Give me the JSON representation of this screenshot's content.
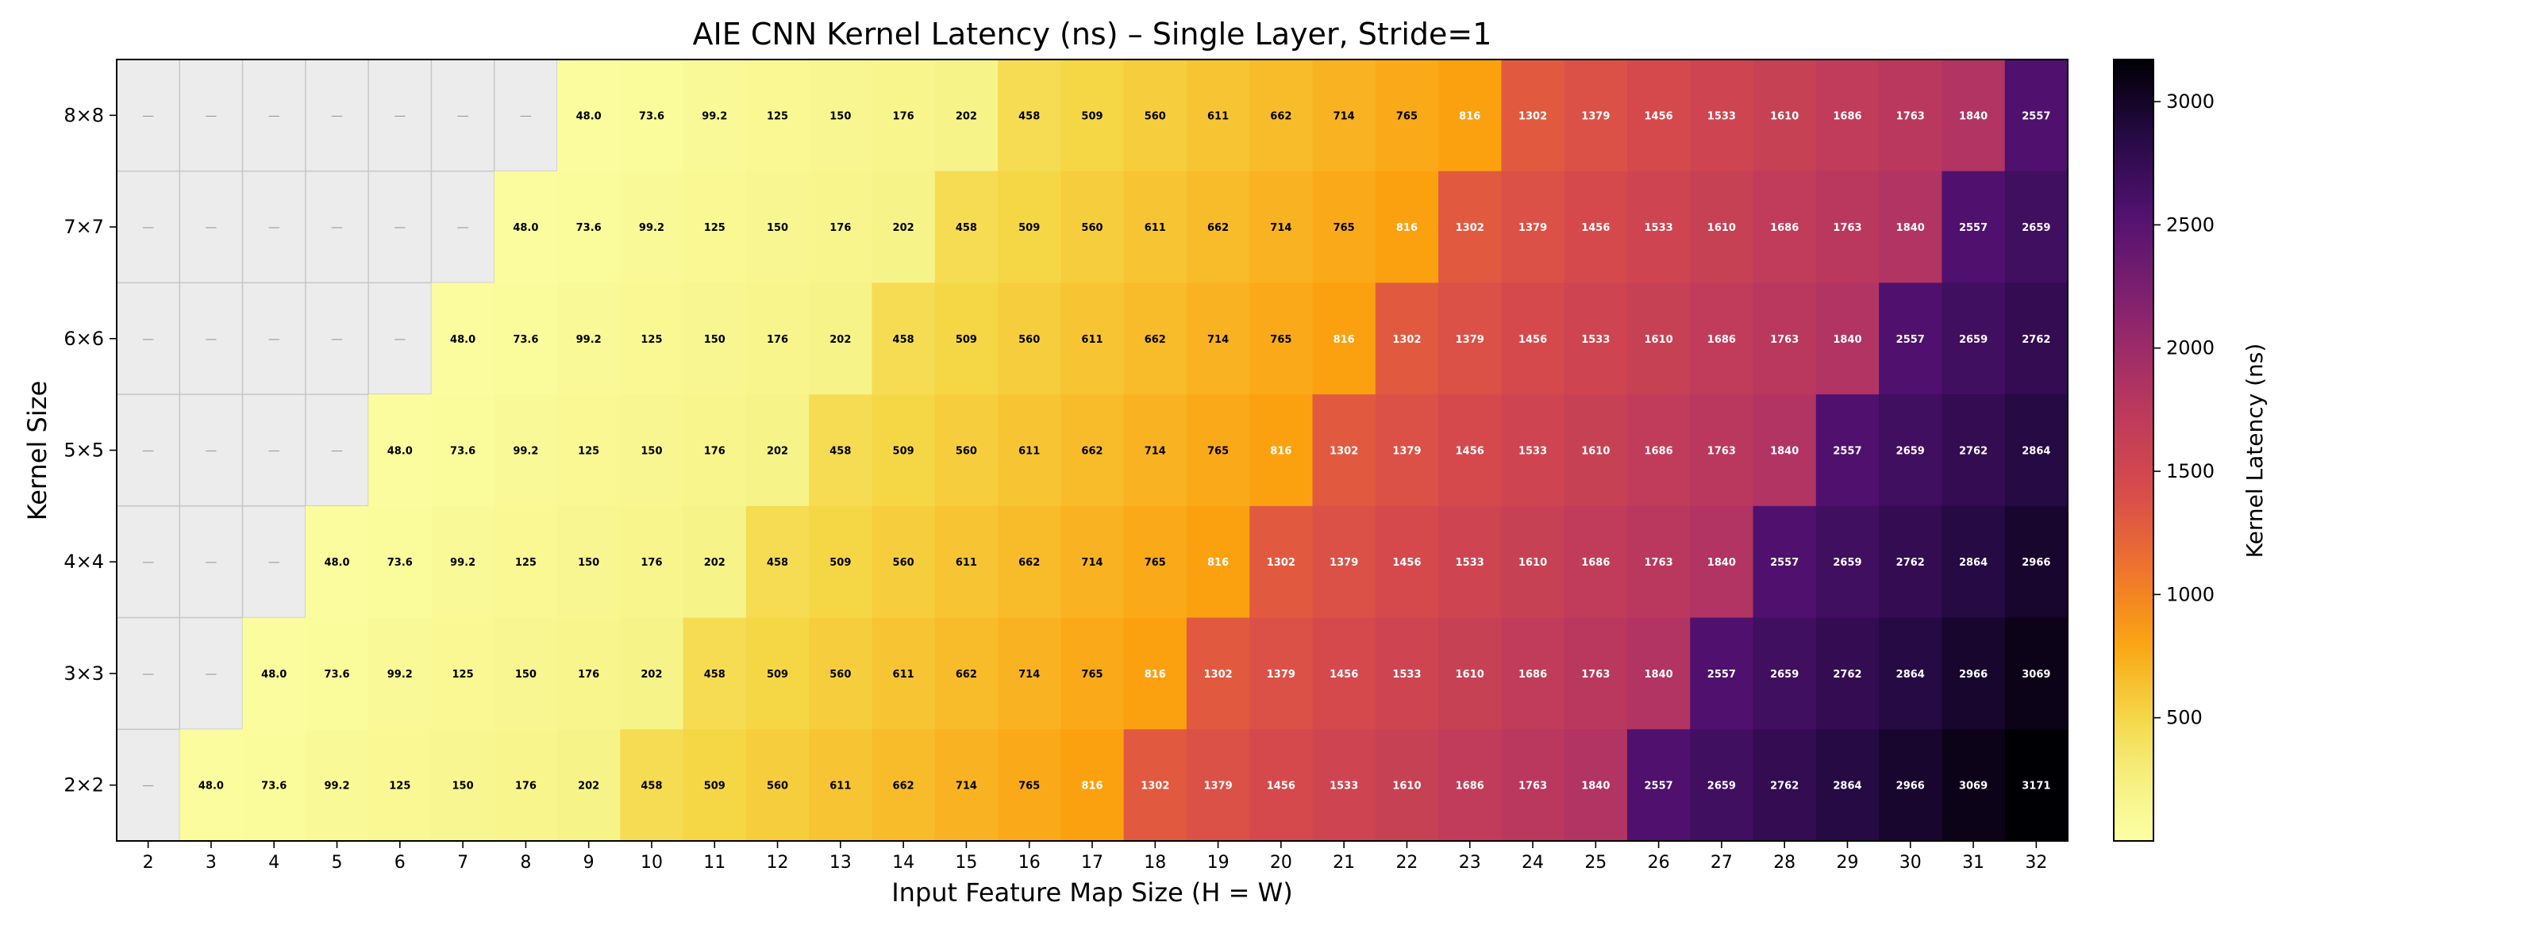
{
  "chart_data": {
    "type": "heatmap",
    "title": "AIE CNN Kernel Latency (ns) – Single Layer, Stride=1",
    "xlabel": "Input Feature Map Size (H = W)",
    "ylabel": "Kernel Size",
    "colorbar_label": "Kernel Latency (ns)",
    "colorbar_ticks": [
      500,
      1000,
      1500,
      2000,
      2500,
      3000
    ],
    "colorbar_range": [
      0,
      3171
    ],
    "colormap": "inferno_r",
    "missing_label": "—",
    "missing_color": "#ececec",
    "x": [
      2,
      3,
      4,
      5,
      6,
      7,
      8,
      9,
      10,
      11,
      12,
      13,
      14,
      15,
      16,
      17,
      18,
      19,
      20,
      21,
      22,
      23,
      24,
      25,
      26,
      27,
      28,
      29,
      30,
      31,
      32
    ],
    "y": [
      "8×8",
      "7×7",
      "6×6",
      "5×5",
      "4×4",
      "3×3",
      "2×2"
    ],
    "values": [
      [
        null,
        null,
        null,
        null,
        null,
        null,
        null,
        48.0,
        73.6,
        99.2,
        125,
        150,
        176,
        202,
        458,
        509,
        560,
        611,
        662,
        714,
        765,
        816,
        1302,
        1379,
        1456,
        1533,
        1610,
        1686,
        1763,
        1840,
        2557
      ],
      [
        null,
        null,
        null,
        null,
        null,
        null,
        48.0,
        73.6,
        99.2,
        125,
        150,
        176,
        202,
        458,
        509,
        560,
        611,
        662,
        714,
        765,
        816,
        1302,
        1379,
        1456,
        1533,
        1610,
        1686,
        1763,
        1840,
        2557,
        2659
      ],
      [
        null,
        null,
        null,
        null,
        null,
        48.0,
        73.6,
        99.2,
        125,
        150,
        176,
        202,
        458,
        509,
        560,
        611,
        662,
        714,
        765,
        816,
        1302,
        1379,
        1456,
        1533,
        1610,
        1686,
        1763,
        1840,
        2557,
        2659,
        2762
      ],
      [
        null,
        null,
        null,
        null,
        48.0,
        73.6,
        99.2,
        125,
        150,
        176,
        202,
        458,
        509,
        560,
        611,
        662,
        714,
        765,
        816,
        1302,
        1379,
        1456,
        1533,
        1610,
        1686,
        1763,
        1840,
        2557,
        2659,
        2762,
        2864
      ],
      [
        null,
        null,
        null,
        48.0,
        73.6,
        99.2,
        125,
        150,
        176,
        202,
        458,
        509,
        560,
        611,
        662,
        714,
        765,
        816,
        1302,
        1379,
        1456,
        1533,
        1610,
        1686,
        1763,
        1840,
        2557,
        2659,
        2762,
        2864,
        2966
      ],
      [
        null,
        null,
        48.0,
        73.6,
        99.2,
        125,
        150,
        176,
        202,
        458,
        509,
        560,
        611,
        662,
        714,
        765,
        816,
        1302,
        1379,
        1456,
        1533,
        1610,
        1686,
        1763,
        1840,
        2557,
        2659,
        2762,
        2864,
        2966,
        3069
      ],
      [
        null,
        48.0,
        73.6,
        99.2,
        125,
        150,
        176,
        202,
        458,
        509,
        560,
        611,
        662,
        714,
        765,
        816,
        1302,
        1379,
        1456,
        1533,
        1610,
        1686,
        1763,
        1840,
        2557,
        2659,
        2762,
        2864,
        2966,
        3069,
        3171
      ]
    ],
    "value_labels": [
      [
        null,
        null,
        null,
        null,
        null,
        null,
        null,
        "48.0",
        "73.6",
        "99.2",
        "125",
        "150",
        "176",
        "202",
        "458",
        "509",
        "560",
        "611",
        "662",
        "714",
        "765",
        "816",
        "1302",
        "1379",
        "1456",
        "1533",
        "1610",
        "1686",
        "1763",
        "1840",
        "2557"
      ],
      [
        null,
        null,
        null,
        null,
        null,
        null,
        "48.0",
        "73.6",
        "99.2",
        "125",
        "150",
        "176",
        "202",
        "458",
        "509",
        "560",
        "611",
        "662",
        "714",
        "765",
        "816",
        "1302",
        "1379",
        "1456",
        "1533",
        "1610",
        "1686",
        "1763",
        "1840",
        "2557",
        "2659"
      ],
      [
        null,
        null,
        null,
        null,
        null,
        "48.0",
        "73.6",
        "99.2",
        "125",
        "150",
        "176",
        "202",
        "458",
        "509",
        "560",
        "611",
        "662",
        "714",
        "765",
        "816",
        "1302",
        "1379",
        "1456",
        "1533",
        "1610",
        "1686",
        "1763",
        "1840",
        "2557",
        "2659",
        "2762"
      ],
      [
        null,
        null,
        null,
        null,
        "48.0",
        "73.6",
        "99.2",
        "125",
        "150",
        "176",
        "202",
        "458",
        "509",
        "560",
        "611",
        "662",
        "714",
        "765",
        "816",
        "1302",
        "1379",
        "1456",
        "1533",
        "1610",
        "1686",
        "1763",
        "1840",
        "2557",
        "2659",
        "2762",
        "2864"
      ],
      [
        null,
        null,
        null,
        "48.0",
        "73.6",
        "99.2",
        "125",
        "150",
        "176",
        "202",
        "458",
        "509",
        "560",
        "611",
        "662",
        "714",
        "765",
        "816",
        "1302",
        "1379",
        "1456",
        "1533",
        "1610",
        "1686",
        "1763",
        "1840",
        "2557",
        "2659",
        "2762",
        "2864",
        "2966"
      ],
      [
        null,
        null,
        "48.0",
        "73.6",
        "99.2",
        "125",
        "150",
        "176",
        "202",
        "458",
        "509",
        "560",
        "611",
        "662",
        "714",
        "765",
        "816",
        "1302",
        "1379",
        "1456",
        "1533",
        "1610",
        "1686",
        "1763",
        "1840",
        "2557",
        "2659",
        "2762",
        "2864",
        "2966",
        "3069"
      ],
      [
        null,
        "48.0",
        "73.6",
        "99.2",
        "125",
        "150",
        "176",
        "202",
        "458",
        "509",
        "560",
        "611",
        "662",
        "714",
        "765",
        "816",
        "1302",
        "1379",
        "1456",
        "1533",
        "1610",
        "1686",
        "1763",
        "1840",
        "2557",
        "2659",
        "2762",
        "2864",
        "2966",
        "3069",
        "3171"
      ]
    ]
  }
}
